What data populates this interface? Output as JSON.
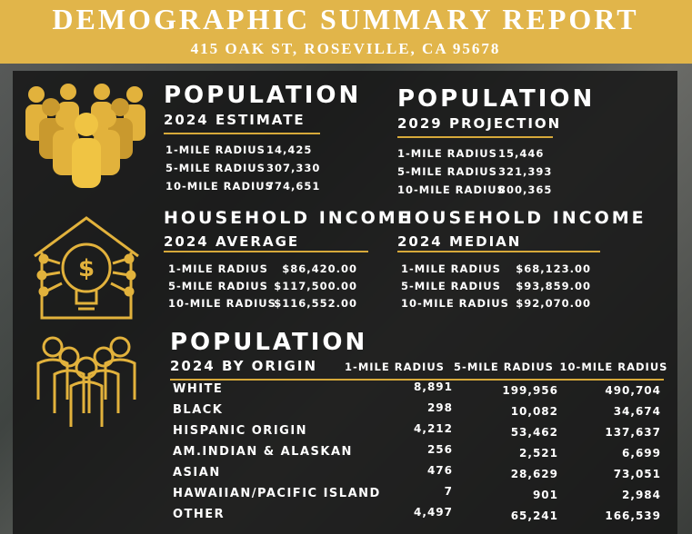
{
  "header": {
    "title": "DEMOGRAPHIC SUMMARY REPORT",
    "subtitle": "415 OAK ST, ROSEVILLE, CA 95678"
  },
  "sections": [
    {
      "title": "POPULATION",
      "subtitle": "2024 ESTIMATE",
      "rows": [
        [
          "1-MILE RADIUS",
          "14,425"
        ],
        [
          "5-MILE RADIUS",
          "307,330"
        ],
        [
          "10-MILE RADIUS",
          "774,651"
        ]
      ]
    },
    {
      "title": "POPULATION",
      "subtitle": "2029 PROJECTION",
      "rows": [
        [
          "1-MILE RADIUS",
          "15,446"
        ],
        [
          "5-MILE RADIUS",
          "321,393"
        ],
        [
          "10-MILE RADIUS",
          "800,365"
        ]
      ]
    },
    {
      "title": "HOUSEHOLD INCOME",
      "subtitle": "2024 AVERAGE",
      "rows": [
        [
          "1-MILE RADIUS",
          "$86,420.00"
        ],
        [
          "5-MILE RADIUS",
          "$117,500.00"
        ],
        [
          "10-MILE RADIUS",
          "$116,552.00"
        ]
      ]
    },
    {
      "title": "HOUSEHOLD INCOME",
      "subtitle": "2024 MEDIAN",
      "rows": [
        [
          "1-MILE RADIUS",
          "$68,123.00"
        ],
        [
          "5-MILE RADIUS",
          "$93,859.00"
        ],
        [
          "10-MILE RADIUS",
          "$92,070.00"
        ]
      ]
    }
  ],
  "origin": {
    "title": "POPULATION",
    "subtitle": "2024 BY ORIGIN",
    "columns": [
      "1-MILE RADIUS",
      "5-MILE RADIUS",
      "10-MILE RADIUS"
    ],
    "rows": [
      [
        "WHITE",
        "8,891",
        "199,956",
        "490,704"
      ],
      [
        "BLACK",
        "298",
        "10,082",
        "34,674"
      ],
      [
        "HISPANIC ORIGIN",
        "4,212",
        "53,462",
        "137,637"
      ],
      [
        "AM.INDIAN & ALASKAN",
        "256",
        "2,521",
        "6,699"
      ],
      [
        "ASIAN",
        "476",
        "28,629",
        "73,051"
      ],
      [
        "HAWAIIAN/PACIFIC ISLAND",
        "7",
        "901",
        "2,984"
      ],
      [
        "OTHER",
        "4,497",
        "65,241",
        "166,539"
      ]
    ]
  }
}
